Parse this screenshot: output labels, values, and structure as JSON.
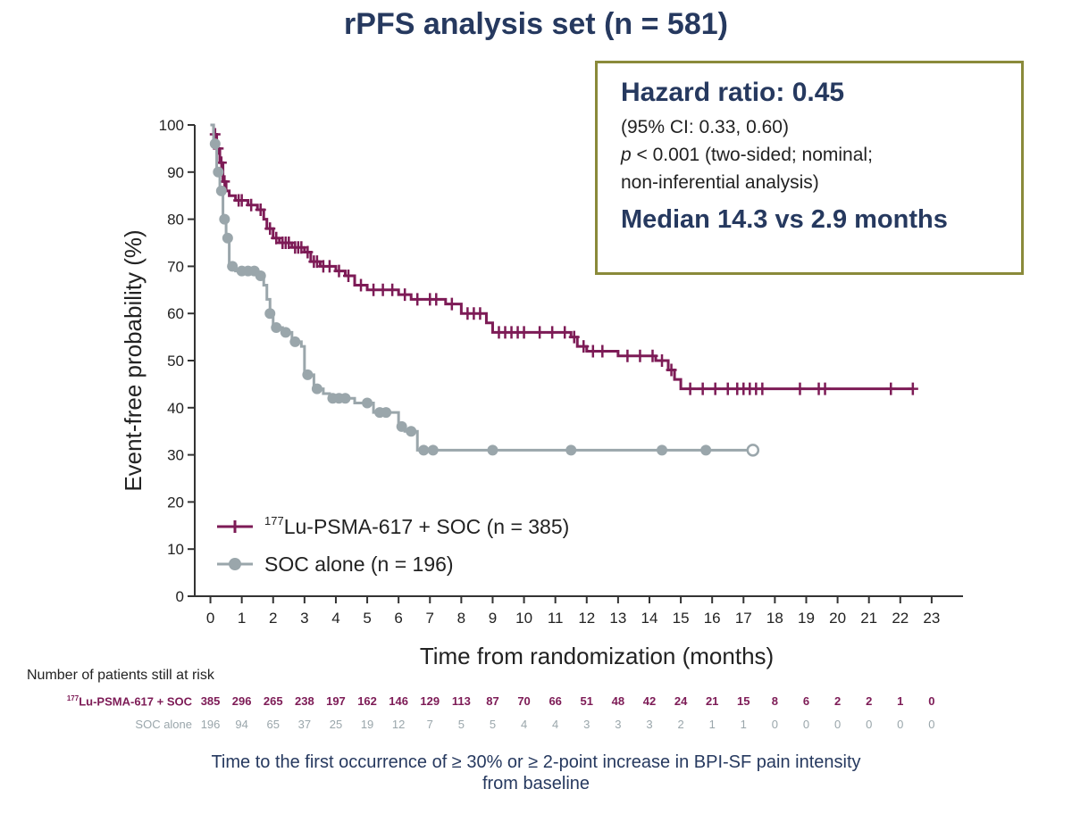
{
  "title": "rPFS analysis set (n = 581)",
  "hazard_box": {
    "title": "Hazard ratio: 0.45",
    "ci": "(95% CI: 0.33, 0.60)",
    "p_italic": "p",
    "p_rest": " < 0.001 (two-sided; nominal;",
    "p_line2": "non-inferential analysis)",
    "median": "Median 14.3 vs 2.9 months"
  },
  "chart_data": {
    "type": "line",
    "ylabel": "Event-free probability (%)",
    "xlabel": "Time from randomization (months)",
    "xlim": [
      -0.5,
      24
    ],
    "ylim": [
      0,
      100
    ],
    "x_ticks": [
      0,
      1,
      2,
      3,
      4,
      5,
      6,
      7,
      8,
      9,
      10,
      11,
      12,
      13,
      14,
      15,
      16,
      17,
      18,
      19,
      20,
      21,
      22,
      23
    ],
    "y_ticks": [
      0,
      10,
      20,
      30,
      40,
      50,
      60,
      70,
      80,
      90,
      100
    ],
    "legend_placement": "bottom-left",
    "colors": {
      "lu": "#7d1b56",
      "soc": "#9aa6ab"
    },
    "series": [
      {
        "name": "Lu-PSMA-617 + SOC (n = 385)",
        "legend_sup": "177",
        "legend_text": "Lu-PSMA-617 + SOC (n = 385)",
        "marker": "plus",
        "steps": [
          [
            0,
            100
          ],
          [
            0.1,
            98
          ],
          [
            0.2,
            95
          ],
          [
            0.3,
            92
          ],
          [
            0.4,
            88
          ],
          [
            0.5,
            86
          ],
          [
            0.6,
            85
          ],
          [
            0.8,
            84
          ],
          [
            1.2,
            83
          ],
          [
            1.5,
            82
          ],
          [
            1.7,
            80
          ],
          [
            1.8,
            78
          ],
          [
            2.0,
            76
          ],
          [
            2.2,
            75
          ],
          [
            2.6,
            74
          ],
          [
            3.0,
            73
          ],
          [
            3.2,
            71
          ],
          [
            3.5,
            70
          ],
          [
            4.0,
            69
          ],
          [
            4.3,
            68
          ],
          [
            4.6,
            66
          ],
          [
            5.0,
            65
          ],
          [
            6.0,
            64
          ],
          [
            6.4,
            63
          ],
          [
            7.5,
            62
          ],
          [
            8.0,
            60
          ],
          [
            8.8,
            58
          ],
          [
            9.0,
            56
          ],
          [
            11.5,
            55
          ],
          [
            11.7,
            53
          ],
          [
            12.0,
            52
          ],
          [
            13.0,
            51
          ],
          [
            14.2,
            50
          ],
          [
            14.6,
            48
          ],
          [
            14.8,
            46
          ],
          [
            15.0,
            44
          ],
          [
            22.4,
            44
          ]
        ],
        "censors": [
          0.15,
          0.25,
          0.35,
          0.45,
          0.9,
          1.0,
          1.3,
          1.6,
          1.9,
          2.1,
          2.3,
          2.4,
          2.5,
          2.7,
          2.8,
          2.9,
          3.1,
          3.3,
          3.4,
          3.6,
          3.8,
          4.1,
          4.4,
          4.8,
          5.2,
          5.5,
          5.8,
          6.2,
          6.6,
          7.0,
          7.2,
          7.7,
          8.2,
          8.4,
          8.6,
          9.2,
          9.4,
          9.6,
          9.8,
          10.0,
          10.5,
          10.9,
          11.3,
          11.6,
          11.9,
          12.2,
          12.5,
          13.3,
          13.7,
          14.1,
          14.4,
          14.7,
          15.3,
          15.7,
          16.1,
          16.5,
          16.8,
          17.0,
          17.2,
          17.4,
          17.6,
          18.8,
          19.4,
          19.6,
          21.7,
          22.4
        ]
      },
      {
        "name": "SOC alone (n = 196)",
        "legend_sup": "",
        "legend_text": "SOC alone (n = 196)",
        "marker": "dot",
        "steps": [
          [
            0,
            100
          ],
          [
            0.1,
            96
          ],
          [
            0.2,
            90
          ],
          [
            0.3,
            86
          ],
          [
            0.4,
            80
          ],
          [
            0.5,
            76
          ],
          [
            0.6,
            70
          ],
          [
            0.8,
            69
          ],
          [
            1.5,
            68
          ],
          [
            1.7,
            66
          ],
          [
            1.8,
            63
          ],
          [
            1.9,
            60
          ],
          [
            2.0,
            57
          ],
          [
            2.3,
            56
          ],
          [
            2.6,
            54
          ],
          [
            2.9,
            53
          ],
          [
            3.0,
            47
          ],
          [
            3.3,
            44
          ],
          [
            3.6,
            43
          ],
          [
            3.8,
            42
          ],
          [
            4.6,
            41
          ],
          [
            5.2,
            39
          ],
          [
            6.0,
            36
          ],
          [
            6.2,
            35
          ],
          [
            6.6,
            31
          ],
          [
            17.3,
            31
          ]
        ],
        "censors": [
          0.15,
          0.25,
          0.35,
          0.45,
          0.55,
          0.7,
          1.0,
          1.2,
          1.4,
          1.6,
          1.9,
          2.1,
          2.4,
          2.7,
          3.1,
          3.4,
          3.9,
          4.1,
          4.3,
          5.0,
          5.4,
          5.6,
          6.1,
          6.4,
          6.8,
          7.1,
          9.0,
          11.5,
          14.4,
          15.8,
          17.3
        ]
      }
    ]
  },
  "risk_table": {
    "header": "Number of patients still at risk",
    "rows": [
      {
        "sup": "177",
        "label": "Lu-PSMA-617 + SOC",
        "values": [
          "385",
          "296",
          "265",
          "238",
          "197",
          "162",
          "146",
          "129",
          "113",
          "87",
          "70",
          "66",
          "51",
          "48",
          "42",
          "24",
          "21",
          "15",
          "8",
          "6",
          "2",
          "2",
          "1",
          "0"
        ]
      },
      {
        "sup": "",
        "label": "SOC alone",
        "values": [
          "196",
          "94",
          "65",
          "37",
          "25",
          "19",
          "12",
          "7",
          "5",
          "5",
          "4",
          "4",
          "3",
          "3",
          "3",
          "2",
          "1",
          "1",
          "0",
          "0",
          "0",
          "0",
          "0",
          "0"
        ]
      }
    ]
  },
  "footnote": {
    "line1": "Time to the first occurrence of ≥ 30% or ≥ 2-point increase in BPI-SF pain intensity",
    "line2": "from baseline"
  }
}
